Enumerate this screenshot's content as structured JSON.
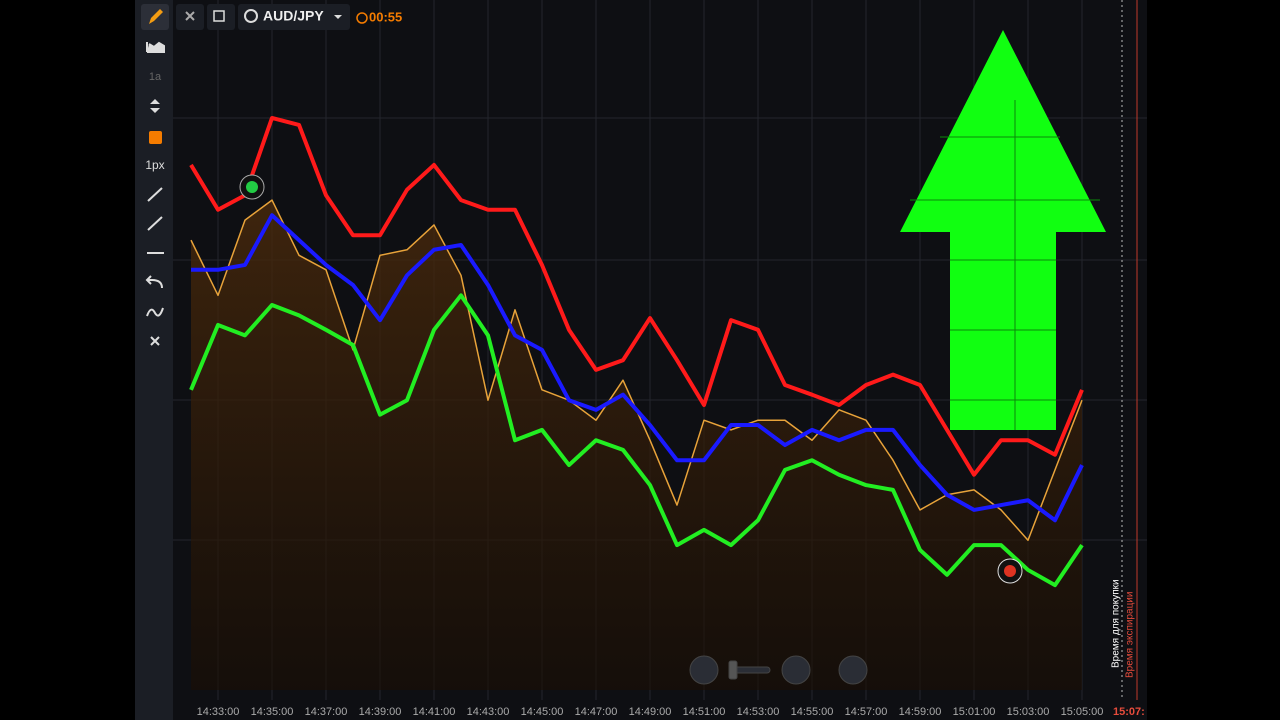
{
  "toolbar": {
    "tools": [
      "1a",
      "1px"
    ]
  },
  "header": {
    "pair": "AUD/JPY",
    "timer": "00:55"
  },
  "side_labels": {
    "buy_time": "Время для покупки",
    "expiry_time": "Время экспирации",
    "expiry_clock": "15:07:"
  },
  "chart_data": {
    "type": "line",
    "categories": [
      null,
      "14:33:00",
      null,
      "14:35:00",
      null,
      "14:37:00",
      null,
      "14:39:00",
      null,
      "14:41:00",
      null,
      "14:43:00",
      null,
      "14:45:00",
      null,
      "14:47:00",
      null,
      "14:49:00",
      null,
      "14:51:00",
      null,
      "14:53:00",
      null,
      "14:55:00",
      null,
      "14:57:00",
      null,
      "14:59:00",
      null,
      "15:01:00",
      null,
      "15:03:00",
      null,
      "15:05:00"
    ],
    "ylim": [
      0,
      100
    ],
    "series": [
      {
        "color": "#e8a33a",
        "values": [
          65.2,
          57.2,
          68.1,
          71.0,
          63.0,
          60.9,
          49.3,
          63.0,
          63.8,
          67.4,
          60.1,
          42.0,
          55.1,
          43.5,
          42.0,
          39.1,
          44.9,
          36.2,
          26.8,
          39.1,
          37.7,
          39.1,
          39.1,
          36.2,
          40.6,
          39.1,
          33.3,
          26.1,
          28.3,
          29.0,
          26.1,
          21.7,
          31.9,
          42.0
        ]
      },
      {
        "color": "#ff1a1a",
        "values": [
          76.1,
          69.6,
          71.7,
          82.9,
          81.9,
          71.7,
          65.9,
          65.9,
          72.5,
          76.1,
          71.0,
          69.6,
          69.6,
          61.6,
          52.2,
          46.4,
          47.8,
          53.9,
          47.8,
          41.3,
          53.6,
          52.2,
          44.2,
          42.8,
          41.3,
          44.2,
          45.7,
          44.2,
          37.7,
          31.2,
          36.2,
          36.2,
          34.1,
          43.5
        ]
      },
      {
        "color": "#1a1aff",
        "values": [
          60.9,
          60.9,
          61.6,
          68.8,
          65.2,
          61.6,
          58.7,
          53.6,
          60.1,
          63.8,
          64.5,
          58.7,
          51.4,
          49.3,
          42.0,
          40.6,
          42.8,
          38.4,
          33.3,
          33.3,
          38.4,
          38.4,
          35.5,
          37.7,
          36.2,
          37.7,
          37.7,
          32.6,
          28.3,
          26.1,
          26.8,
          27.5,
          24.6,
          32.6
        ]
      },
      {
        "color": "#22ee22",
        "values": [
          43.5,
          52.9,
          51.4,
          55.8,
          54.3,
          52.2,
          50.0,
          39.9,
          42.0,
          52.2,
          57.2,
          51.4,
          36.2,
          37.7,
          32.6,
          36.2,
          34.8,
          29.7,
          21.0,
          23.2,
          21.0,
          24.6,
          31.9,
          33.3,
          31.2,
          29.7,
          29.0,
          20.3,
          16.7,
          21.0,
          21.0,
          17.4,
          15.2,
          21.0
        ]
      }
    ]
  }
}
